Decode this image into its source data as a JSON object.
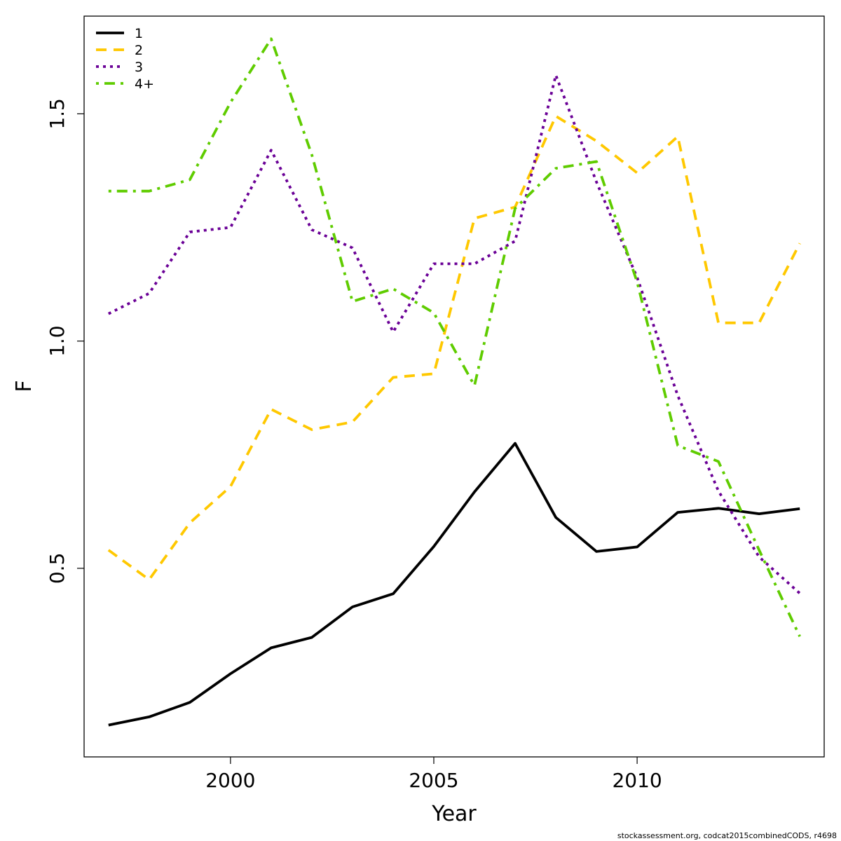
{
  "chart_data": {
    "type": "line",
    "title": "",
    "xlabel": "Year",
    "ylabel": "F",
    "xlim": [
      1996.4,
      2014.6
    ],
    "ylim": [
      0.085,
      1.715
    ],
    "x_ticks": [
      2000,
      2005,
      2010
    ],
    "x_tick_labels": [
      "2000",
      "2005",
      "2010"
    ],
    "y_ticks": [
      0.5,
      1.0,
      1.5
    ],
    "y_tick_labels": [
      "0.5",
      "1.0",
      "1.5"
    ],
    "legend_position": "top-left",
    "grid": false,
    "x": [
      1997,
      1998,
      1999,
      2000,
      2001,
      2002,
      2003,
      2004,
      2005,
      2006,
      2007,
      2008,
      2009,
      2010,
      2011,
      2012,
      2013,
      2014
    ],
    "series": [
      {
        "name": "1",
        "color": "#000000",
        "line_style": "solid",
        "values": [
          0.155,
          0.173,
          0.205,
          0.268,
          0.325,
          0.348,
          0.415,
          0.444,
          0.548,
          0.668,
          0.775,
          0.612,
          0.537,
          0.547,
          0.623,
          0.632,
          0.62,
          0.631
        ]
      },
      {
        "name": "2",
        "color": "#FFC800",
        "line_style": "dashed",
        "values": [
          0.54,
          0.475,
          0.6,
          0.68,
          0.85,
          0.805,
          0.822,
          0.92,
          0.928,
          1.27,
          1.295,
          1.495,
          1.44,
          1.37,
          1.45,
          1.04,
          1.04,
          1.215
        ]
      },
      {
        "name": "3",
        "color": "#6A0096",
        "line_style": "dotted",
        "values": [
          1.06,
          1.105,
          1.24,
          1.25,
          1.42,
          1.245,
          1.205,
          1.02,
          1.17,
          1.17,
          1.22,
          1.585,
          1.35,
          1.14,
          0.88,
          0.67,
          0.525,
          0.445
        ]
      },
      {
        "name": "4+",
        "color": "#5FCC00",
        "line_style": "dashdot",
        "values": [
          1.33,
          1.33,
          1.355,
          1.525,
          1.665,
          1.41,
          1.087,
          1.115,
          1.062,
          0.902,
          1.292,
          1.38,
          1.395,
          1.13,
          0.77,
          0.735,
          0.54,
          0.35
        ]
      }
    ],
    "footer_note": "stockassessment.org, codcat2015combinedCODS, r4698"
  }
}
